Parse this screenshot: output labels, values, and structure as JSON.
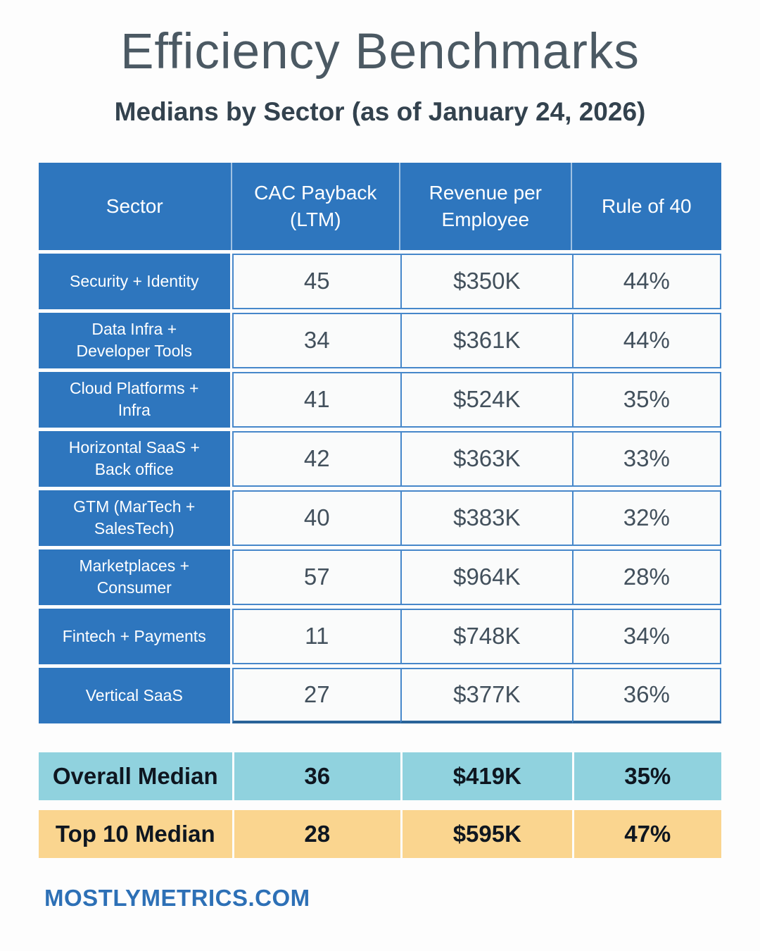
{
  "title": "Efficiency Benchmarks",
  "subtitle": "Medians by Sector (as of January 24, 2026)",
  "chart_data": {
    "type": "table",
    "title": "Efficiency Benchmarks",
    "subtitle": "Medians by Sector (as of January 24, 2026)",
    "columns": [
      "Sector",
      "CAC Payback (LTM)",
      "Revenue per Employee",
      "Rule of 40"
    ],
    "rows": [
      [
        "Security + Identity",
        "45",
        "$350K",
        "44%"
      ],
      [
        "Data Infra + Developer Tools",
        "34",
        "$361K",
        "44%"
      ],
      [
        "Cloud Platforms + Infra",
        "41",
        "$524K",
        "35%"
      ],
      [
        "Horizontal SaaS + Back office",
        "42",
        "$363K",
        "33%"
      ],
      [
        "GTM (MarTech + SalesTech)",
        "40",
        "$383K",
        "32%"
      ],
      [
        "Marketplaces + Consumer",
        "57",
        "$964K",
        "28%"
      ],
      [
        "Fintech + Payments",
        "11",
        "$748K",
        "34%"
      ],
      [
        "Vertical SaaS",
        "27",
        "$377K",
        "36%"
      ]
    ],
    "summary_rows": [
      [
        "Overall Median",
        "36",
        "$419K",
        "35%"
      ],
      [
        "Top 10 Median",
        "28",
        "$595K",
        "47%"
      ]
    ],
    "layout_hints": {
      "header_style": "blue band, white text",
      "summary_row_colors": [
        "light-blue",
        "light-orange"
      ]
    }
  },
  "footer": {
    "brand": "MOSTLYMETRICS.COM"
  },
  "colors": {
    "header_blue": "#2e76be",
    "cell_border_blue": "#4687ca",
    "table_bottom_border": "#2a6399",
    "summary_overall_bg": "#90d2de",
    "summary_top10_bg": "#fad58f",
    "title_text": "#4b5963",
    "data_text": "#42505c",
    "brand_blue": "#2d70b6",
    "page_background": "#fdfdfd"
  }
}
